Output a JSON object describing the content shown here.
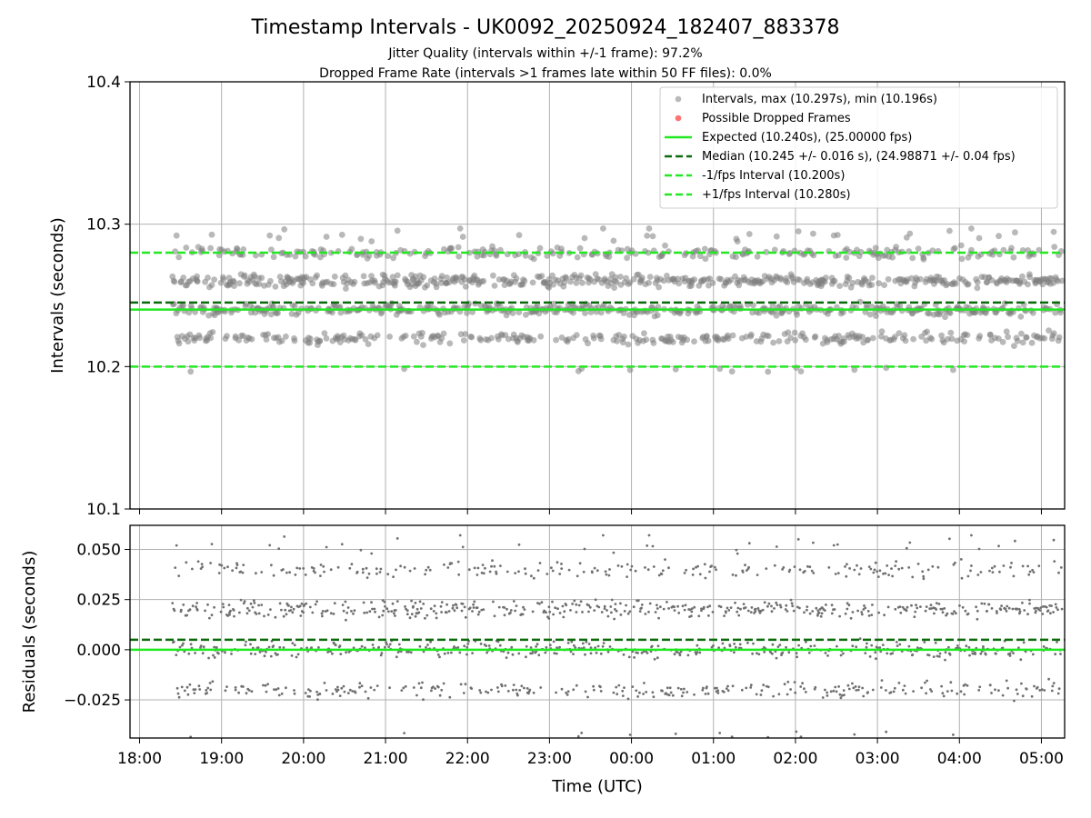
{
  "chart_data": [
    {
      "type": "scatter",
      "title": "Timestamp Intervals - UK0092_20250924_182407_883378",
      "subtitle_1": "Jitter Quality (intervals within +/-1 frame): 97.2%",
      "subtitle_2": "Dropped Frame Rate (intervals >1 frames late within 50 FF files): 0.0%",
      "ylabel": "Intervals (seconds)",
      "ylim": [
        10.1,
        10.4
      ],
      "y_ticks": [
        "10.1",
        "10.2",
        "10.3",
        "10.4"
      ],
      "grid": true,
      "legend_placement": "top-right",
      "legend": [
        "Intervals, max (10.297s), min (10.196s)",
        "Possible Dropped Frames",
        "Expected (10.240s), (25.00000 fps)",
        "Median (10.245 +/- 0.016 s), (24.98871 +/- 0.04 fps)",
        "-1/fps Interval (10.200s)",
        "+1/fps Interval (10.280s)"
      ],
      "series": [
        {
          "name": "Intervals",
          "color": "#808080",
          "x_range": [
            "18:24",
            "05:15"
          ],
          "bands": [
            10.22,
            10.24,
            10.26,
            10.28
          ],
          "max": 10.297,
          "min": 10.196
        },
        {
          "name": "Possible Dropped Frames",
          "color": "#ff5a5a",
          "values": []
        }
      ],
      "lines": [
        {
          "name": "Expected",
          "value": 10.24,
          "style": "solid",
          "color": "#22e822"
        },
        {
          "name": "Median",
          "value": 10.245,
          "style": "dashed",
          "color": "#0b6b0b"
        },
        {
          "name": "-1/fps Interval",
          "value": 10.2,
          "style": "dashed",
          "color": "#22e822"
        },
        {
          "name": "+1/fps Interval",
          "value": 10.28,
          "style": "dashed",
          "color": "#22e822"
        }
      ]
    },
    {
      "type": "scatter",
      "ylabel": "Residuals (seconds)",
      "xlabel": "Time (UTC)",
      "ylim": [
        -0.044,
        0.062
      ],
      "y_ticks": [
        "−0.025",
        "0.000",
        "0.025",
        "0.050"
      ],
      "x_ticks": [
        "18:00",
        "19:00",
        "20:00",
        "21:00",
        "22:00",
        "23:00",
        "00:00",
        "01:00",
        "02:00",
        "03:00",
        "04:00",
        "05:00"
      ],
      "x_range": [
        "17:53",
        "05:17"
      ],
      "grid": true,
      "series": [
        {
          "name": "Residuals",
          "color": "#707070",
          "bands": [
            -0.02,
            0.0,
            0.02,
            0.04
          ]
        }
      ],
      "lines": [
        {
          "name": "Expected",
          "value": 0.0,
          "style": "solid",
          "color": "#22e822"
        },
        {
          "name": "Median",
          "value": 0.005,
          "style": "dashed",
          "color": "#0b6b0b"
        }
      ]
    }
  ]
}
